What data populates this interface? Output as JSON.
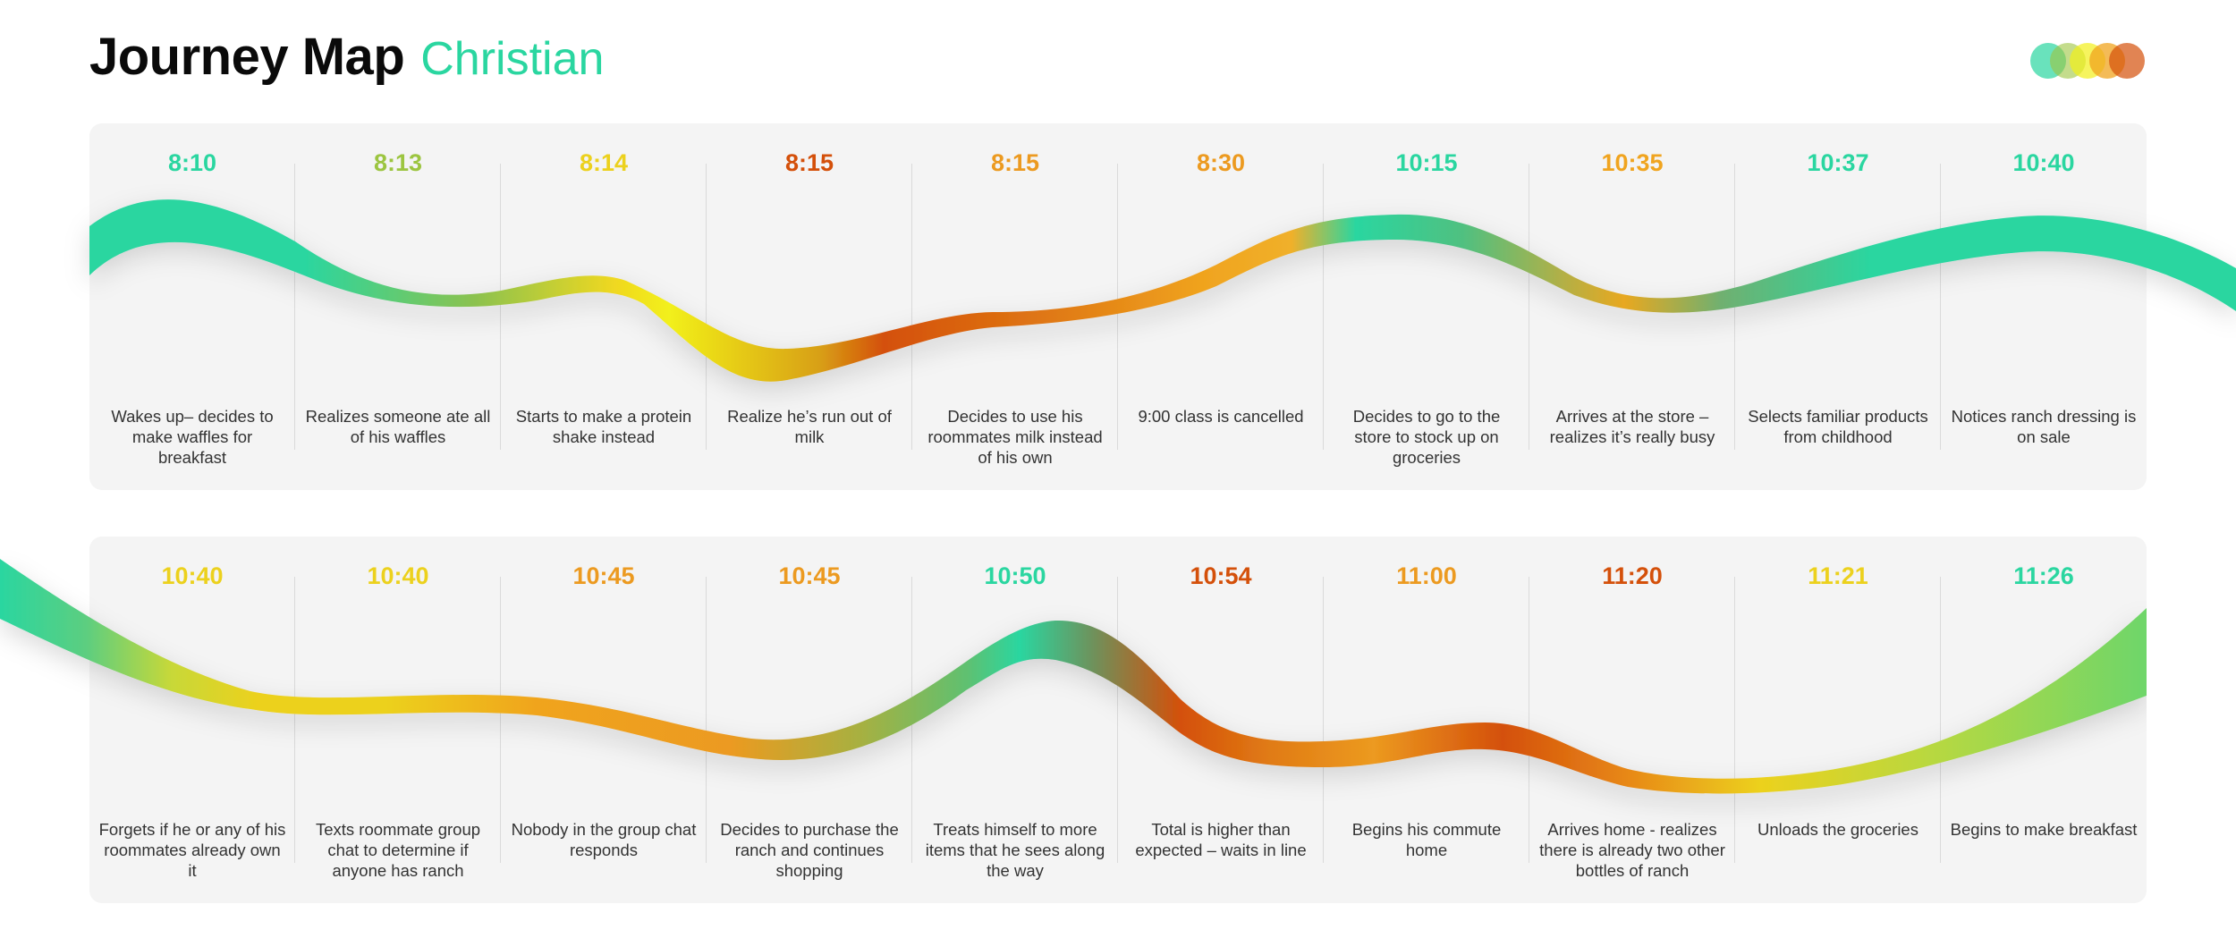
{
  "header": {
    "title": "Journey Map",
    "subtitle": "Christian"
  },
  "colors": {
    "green": "#2ad6a0",
    "lime": "#9cc540",
    "yellow": "#ecd11d",
    "amber": "#f0a41f",
    "orange": "#ec9a20",
    "burnt": "#d4500a",
    "panel": "#f4f4f4",
    "text": "#333333"
  },
  "legend": [
    {
      "color": "#2ad6a0",
      "opacity": 0.7
    },
    {
      "color": "#9cc540",
      "opacity": 0.6
    },
    {
      "color": "#f2f01a",
      "opacity": 0.7
    },
    {
      "color": "#f0a41f",
      "opacity": 0.75
    },
    {
      "color": "#d4500a",
      "opacity": 0.7
    }
  ],
  "rows": [
    {
      "steps": [
        {
          "time": "8:10",
          "color": "#2ad6a0",
          "desc": "Wakes up– decides to make waffles for breakfast"
        },
        {
          "time": "8:13",
          "color": "#9cc540",
          "desc": "Realizes someone ate all of his waffles"
        },
        {
          "time": "8:14",
          "color": "#ecd11d",
          "desc": "Starts to make a protein shake instead"
        },
        {
          "time": "8:15",
          "color": "#d4500a",
          "desc": "Realize he’s run out of milk"
        },
        {
          "time": "8:15",
          "color": "#ec9a20",
          "desc": "Decides to use his roommates milk instead of his own"
        },
        {
          "time": "8:30",
          "color": "#ec9a20",
          "desc": "9:00 class is cancelled"
        },
        {
          "time": "10:15",
          "color": "#2ad6a0",
          "desc": "Decides to go to the store to stock up on groceries"
        },
        {
          "time": "10:35",
          "color": "#f0a41f",
          "desc": "Arrives at the store – realizes it’s really busy"
        },
        {
          "time": "10:37",
          "color": "#2ad6a0",
          "desc": "Selects familiar products from childhood"
        },
        {
          "time": "10:40",
          "color": "#2ad6a0",
          "desc": "Notices ranch dressing is on sale"
        }
      ]
    },
    {
      "steps": [
        {
          "time": "10:40",
          "color": "#ecd11d",
          "desc": "Forgets if he or any of his roommates already own it"
        },
        {
          "time": "10:40",
          "color": "#ecd11d",
          "desc": "Texts roommate group chat to determine if anyone has ranch"
        },
        {
          "time": "10:45",
          "color": "#ec9a20",
          "desc": "Nobody in the group chat responds"
        },
        {
          "time": "10:45",
          "color": "#ec9a20",
          "desc": "Decides to purchase the ranch and continues shopping"
        },
        {
          "time": "10:50",
          "color": "#2ad6a0",
          "desc": "Treats himself to more items that he sees along the way"
        },
        {
          "time": "10:54",
          "color": "#d4500a",
          "desc": "Total is higher than expected – waits in line"
        },
        {
          "time": "11:00",
          "color": "#ec9a20",
          "desc": "Begins his commute home"
        },
        {
          "time": "11:20",
          "color": "#d4500a",
          "desc": "Arrives home - realizes there is already two other bottles of ranch"
        },
        {
          "time": "11:21",
          "color": "#ecd11d",
          "desc": "Unloads the groceries"
        },
        {
          "time": "11:26",
          "color": "#2ad6a0",
          "desc": "Begins to make breakfast"
        }
      ]
    }
  ]
}
